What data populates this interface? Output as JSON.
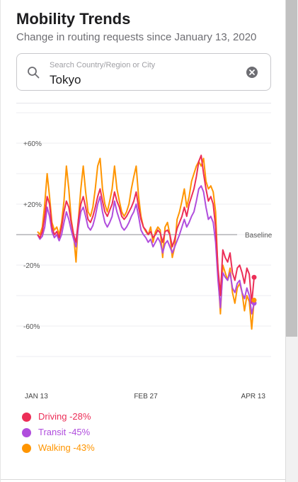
{
  "header": {
    "title": "Mobility Trends",
    "subtitle": "Change in routing requests since January 13, 2020"
  },
  "search": {
    "placeholder": "Search Country/Region or City",
    "value": "Tokyo",
    "icon": "search-icon",
    "clear_icon": "clear-icon"
  },
  "chart_data": {
    "type": "line",
    "y_ticks": [
      "+60%",
      "+20%",
      "-20%",
      "-60%"
    ],
    "baseline_label": "Baseline",
    "x_ticks": [
      "JAN 13",
      "FEB 27",
      "APR 13"
    ],
    "ylim": [
      -88,
      68
    ],
    "x_days": 91,
    "series": [
      {
        "name": "Driving",
        "color": "#ec2e57",
        "end_value": -28,
        "values": [
          0,
          -2,
          2,
          12,
          25,
          20,
          5,
          0,
          2,
          -2,
          5,
          15,
          22,
          18,
          8,
          0,
          -5,
          10,
          20,
          25,
          18,
          10,
          8,
          12,
          18,
          25,
          30,
          22,
          15,
          12,
          16,
          20,
          28,
          22,
          18,
          12,
          10,
          12,
          15,
          18,
          22,
          28,
          18,
          10,
          5,
          3,
          0,
          2,
          -2,
          0,
          3,
          1,
          -5,
          2,
          3,
          0,
          -8,
          -3,
          4,
          8,
          12,
          18,
          12,
          20,
          25,
          30,
          38,
          48,
          52,
          40,
          30,
          22,
          25,
          20,
          5,
          -22,
          -40,
          -10,
          -15,
          -18,
          -12,
          -25,
          -30,
          -22,
          -20,
          -25,
          -32,
          -22,
          -26,
          -45,
          -28
        ]
      },
      {
        "name": "Transit",
        "color": "#b04ddd",
        "end_value": -45,
        "values": [
          0,
          -3,
          -1,
          5,
          18,
          12,
          2,
          -2,
          0,
          -4,
          0,
          8,
          15,
          10,
          3,
          -3,
          -8,
          5,
          15,
          18,
          12,
          5,
          3,
          6,
          12,
          20,
          25,
          15,
          8,
          5,
          8,
          12,
          22,
          15,
          10,
          5,
          3,
          5,
          8,
          12,
          15,
          20,
          12,
          3,
          0,
          -2,
          -5,
          -3,
          -8,
          -5,
          -2,
          -5,
          -12,
          -6,
          -4,
          -8,
          -12,
          -8,
          -4,
          0,
          5,
          10,
          5,
          8,
          12,
          15,
          22,
          30,
          32,
          28,
          18,
          10,
          12,
          8,
          -5,
          -30,
          -48,
          -25,
          -28,
          -30,
          -25,
          -35,
          -38,
          -32,
          -30,
          -38,
          -42,
          -35,
          -40,
          -52,
          -45
        ]
      },
      {
        "name": "Walking",
        "color": "#ff9500",
        "end_value": -43,
        "values": [
          2,
          0,
          5,
          20,
          40,
          25,
          8,
          3,
          5,
          0,
          8,
          22,
          45,
          30,
          10,
          0,
          -18,
          10,
          30,
          45,
          28,
          15,
          12,
          18,
          30,
          45,
          50,
          30,
          20,
          15,
          22,
          30,
          45,
          30,
          22,
          15,
          12,
          15,
          20,
          30,
          38,
          45,
          25,
          12,
          5,
          2,
          0,
          5,
          -5,
          2,
          5,
          3,
          -15,
          5,
          8,
          0,
          -15,
          -8,
          10,
          15,
          22,
          30,
          18,
          25,
          35,
          40,
          45,
          48,
          45,
          50,
          35,
          30,
          32,
          28,
          15,
          -25,
          -52,
          -20,
          -25,
          -30,
          -22,
          -38,
          -45,
          -35,
          -32,
          -38,
          -50,
          -40,
          -44,
          -62,
          -43
        ]
      }
    ]
  },
  "legend": [
    {
      "label": "Driving -28%",
      "color": "#ec2e57"
    },
    {
      "label": "Transit -45%",
      "color": "#b04ddd"
    },
    {
      "label": "Walking -43%",
      "color": "#ff9500"
    }
  ]
}
